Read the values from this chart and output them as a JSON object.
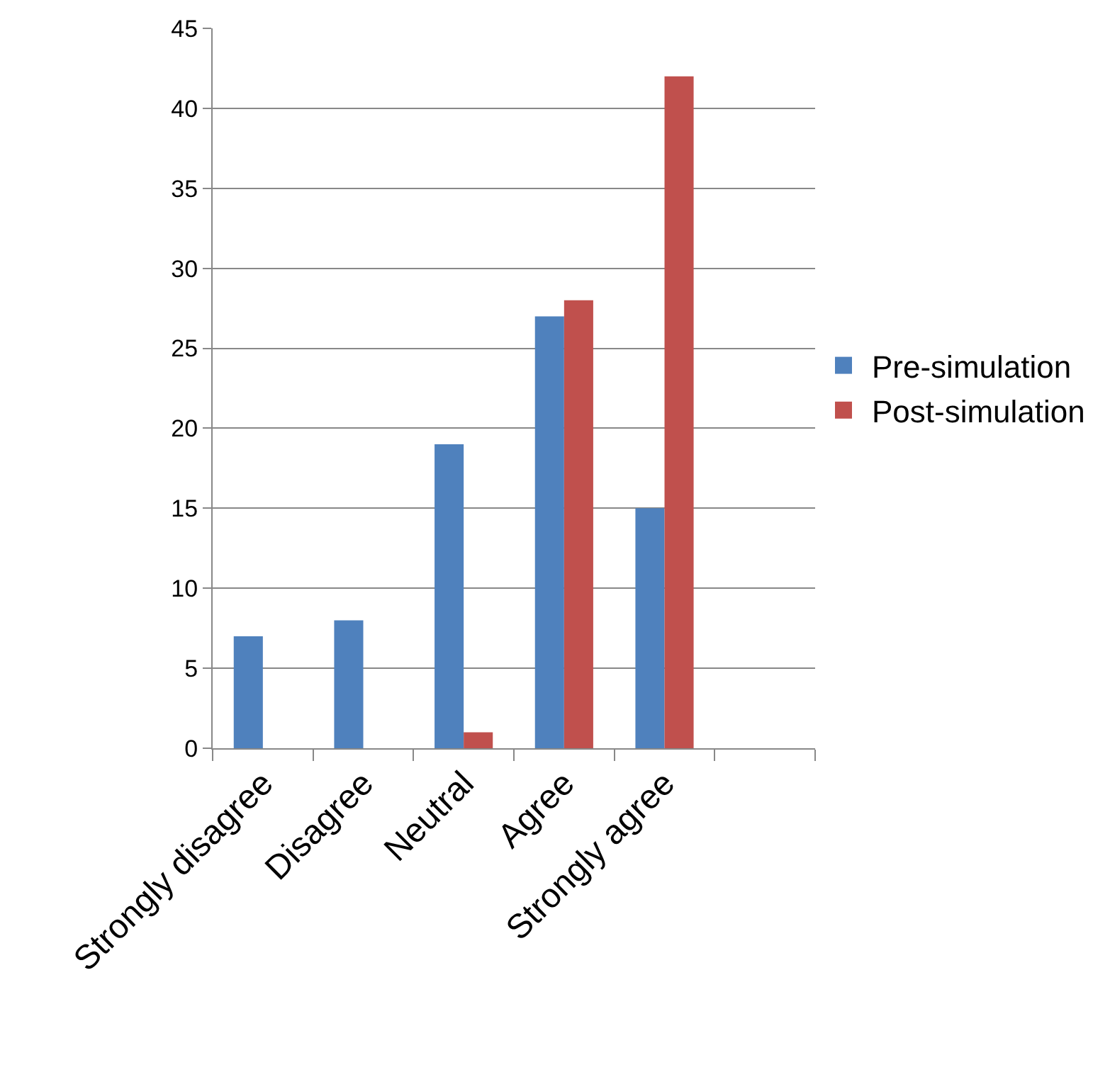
{
  "chart_data": {
    "type": "bar",
    "categories": [
      "Strongly disagree",
      "Disagree",
      "Neutral",
      "Agree",
      "Strongly agree",
      null
    ],
    "series": [
      {
        "name": "Pre-simulation",
        "color": "#4f81bd",
        "values": [
          7,
          8,
          19,
          27,
          15,
          null
        ]
      },
      {
        "name": "Post-simulation",
        "color": "#c0504d",
        "values": [
          0,
          0,
          1,
          28,
          42,
          null
        ]
      }
    ],
    "ylim": [
      0,
      45
    ],
    "yticks": [
      0,
      5,
      10,
      15,
      20,
      25,
      30,
      35,
      40,
      45
    ],
    "grid": "y",
    "legend": "right"
  }
}
